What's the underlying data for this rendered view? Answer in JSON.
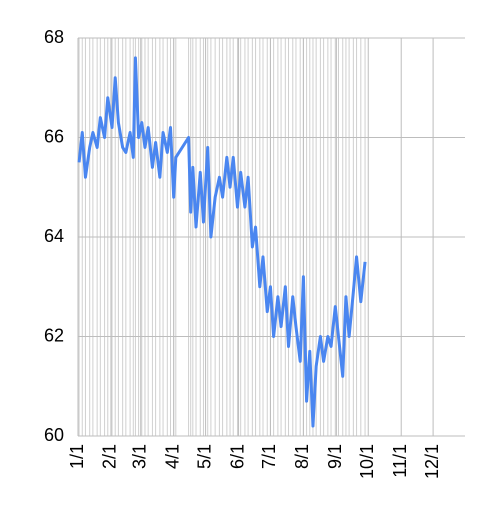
{
  "chart_data": {
    "type": "line",
    "x": [
      "1/2",
      "1/5",
      "1/8",
      "1/12",
      "1/15",
      "1/19",
      "1/22",
      "1/26",
      "1/29",
      "2/2",
      "2/5",
      "2/8",
      "2/12",
      "2/15",
      "2/19",
      "2/22",
      "2/24",
      "2/27",
      "3/2",
      "3/5",
      "3/8",
      "3/12",
      "3/15",
      "3/19",
      "3/22",
      "3/26",
      "3/29",
      "4/1",
      "4/3",
      "4/15",
      "4/17",
      "4/19",
      "4/22",
      "4/26",
      "4/29",
      "5/3",
      "5/6",
      "5/10",
      "5/14",
      "5/17",
      "5/21",
      "5/24",
      "5/27",
      "5/31",
      "6/3",
      "6/7",
      "6/10",
      "6/14",
      "6/17",
      "6/21",
      "6/24",
      "6/28",
      "7/1",
      "7/4",
      "7/8",
      "7/11",
      "7/15",
      "7/18",
      "7/22",
      "7/25",
      "7/29",
      "8/1",
      "8/4",
      "8/7",
      "8/10",
      "8/13",
      "8/17",
      "8/20",
      "8/24",
      "8/27",
      "8/31",
      "9/3",
      "9/7",
      "9/10",
      "9/13",
      "9/17",
      "9/20",
      "9/24",
      "9/28"
    ],
    "series": [
      {
        "color": "#4a86f0",
        "values": [
          65.5,
          66.1,
          65.2,
          65.8,
          66.1,
          65.8,
          66.4,
          66.0,
          66.8,
          66.2,
          67.2,
          66.3,
          65.8,
          65.7,
          66.1,
          65.6,
          67.6,
          66.0,
          66.3,
          65.8,
          66.2,
          65.4,
          65.9,
          65.2,
          66.1,
          65.7,
          66.2,
          64.8,
          65.6,
          66.0,
          64.5,
          65.4,
          64.2,
          65.3,
          64.3,
          65.8,
          64.0,
          64.8,
          65.2,
          64.8,
          65.6,
          65.0,
          65.6,
          64.6,
          65.3,
          64.6,
          65.2,
          63.8,
          64.2,
          63.0,
          63.6,
          62.5,
          63.0,
          62.0,
          62.8,
          62.2,
          63.0,
          61.8,
          62.8,
          62.2,
          61.5,
          63.2,
          60.7,
          61.7,
          60.2,
          61.4,
          62.0,
          61.5,
          62.0,
          61.8,
          62.6,
          62.0,
          61.2,
          62.8,
          62.0,
          62.9,
          63.6,
          62.7,
          63.5
        ]
      }
    ],
    "xlim": [
      "1/1",
      "12/31"
    ],
    "xticks": [
      "1/1",
      "2/1",
      "3/1",
      "4/1",
      "5/1",
      "6/1",
      "7/1",
      "8/1",
      "9/1",
      "10/1",
      "11/1",
      "12/1"
    ],
    "ylim": [
      60,
      68
    ],
    "yticks": [
      60,
      62,
      64,
      66,
      68
    ],
    "grid": true,
    "xgrid": true
  }
}
